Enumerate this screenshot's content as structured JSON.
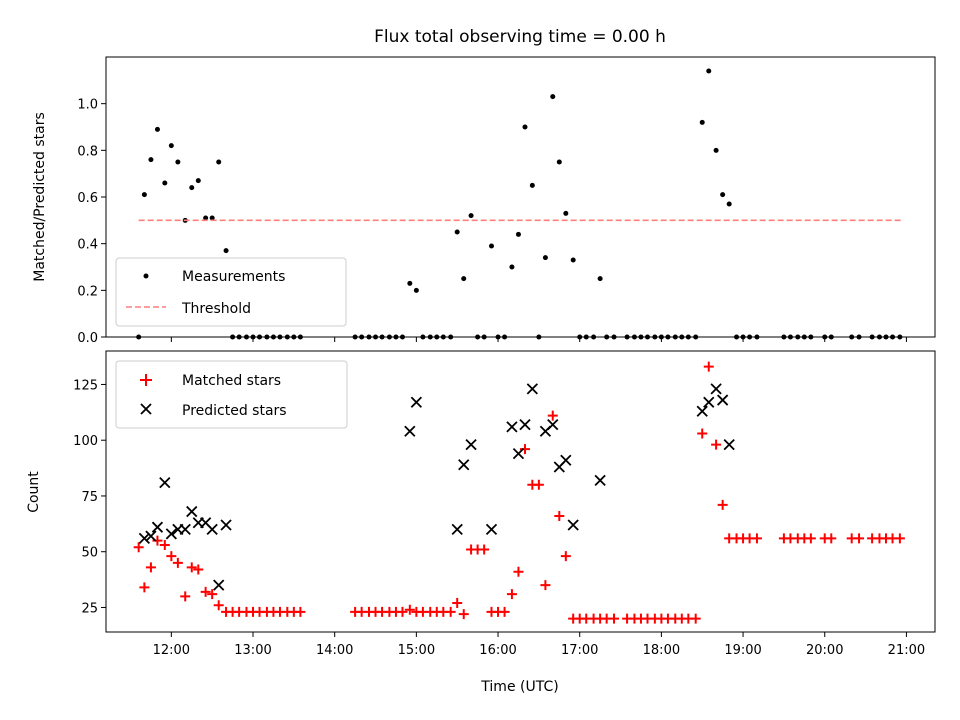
{
  "chart_data": {
    "title": "Flux total observing time = 0.00 h",
    "xlabel": "Time (UTC)",
    "xlim": [
      11.2,
      21.35
    ],
    "xticks": [
      {
        "v": 12,
        "label": "12:00"
      },
      {
        "v": 13,
        "label": "13:00"
      },
      {
        "v": 14,
        "label": "14:00"
      },
      {
        "v": 15,
        "label": "15:00"
      },
      {
        "v": 16,
        "label": "16:00"
      },
      {
        "v": 17,
        "label": "17:00"
      },
      {
        "v": 18,
        "label": "18:00"
      },
      {
        "v": 19,
        "label": "19:00"
      },
      {
        "v": 20,
        "label": "20:00"
      },
      {
        "v": 21,
        "label": "21:00"
      }
    ],
    "top": {
      "type": "scatter",
      "ylabel": "Matched/Predicted stars",
      "ylim": [
        0,
        1.2
      ],
      "yticks": [
        "0.0",
        "0.2",
        "0.4",
        "0.6",
        "0.8",
        "1.0"
      ],
      "legend": [
        "Measurements",
        "Threshold"
      ],
      "threshold": {
        "value": 0.5,
        "x": [
          11.6,
          20.95
        ],
        "color": "#ff7f7f"
      },
      "measurements": {
        "color": "#000000",
        "points": [
          [
            11.6,
            0.0
          ],
          [
            11.67,
            0.61
          ],
          [
            11.75,
            0.76
          ],
          [
            11.83,
            0.89
          ],
          [
            11.92,
            0.66
          ],
          [
            12.0,
            0.82
          ],
          [
            12.08,
            0.75
          ],
          [
            12.17,
            0.5
          ],
          [
            12.25,
            0.64
          ],
          [
            12.33,
            0.67
          ],
          [
            12.42,
            0.51
          ],
          [
            12.5,
            0.51
          ],
          [
            12.58,
            0.75
          ],
          [
            12.67,
            0.37
          ],
          [
            12.75,
            0.0
          ],
          [
            12.83,
            0.0
          ],
          [
            12.92,
            0.0
          ],
          [
            13.0,
            0.0
          ],
          [
            13.08,
            0.0
          ],
          [
            13.17,
            0.0
          ],
          [
            13.25,
            0.0
          ],
          [
            13.33,
            0.0
          ],
          [
            13.42,
            0.0
          ],
          [
            13.5,
            0.0
          ],
          [
            13.58,
            0.0
          ],
          [
            14.25,
            0.0
          ],
          [
            14.33,
            0.0
          ],
          [
            14.42,
            0.0
          ],
          [
            14.5,
            0.0
          ],
          [
            14.58,
            0.0
          ],
          [
            14.67,
            0.0
          ],
          [
            14.75,
            0.0
          ],
          [
            14.83,
            0.0
          ],
          [
            14.92,
            0.23
          ],
          [
            15.0,
            0.2
          ],
          [
            15.08,
            0.0
          ],
          [
            15.17,
            0.0
          ],
          [
            15.25,
            0.0
          ],
          [
            15.33,
            0.0
          ],
          [
            15.42,
            0.0
          ],
          [
            15.5,
            0.45
          ],
          [
            15.58,
            0.25
          ],
          [
            15.67,
            0.52
          ],
          [
            15.75,
            0.0
          ],
          [
            15.83,
            0.0
          ],
          [
            15.92,
            0.39
          ],
          [
            16.0,
            0.0
          ],
          [
            16.08,
            0.0
          ],
          [
            16.17,
            0.3
          ],
          [
            16.25,
            0.44
          ],
          [
            16.33,
            0.9
          ],
          [
            16.42,
            0.65
          ],
          [
            16.5,
            0.0
          ],
          [
            16.58,
            0.34
          ],
          [
            16.67,
            1.03
          ],
          [
            16.75,
            0.75
          ],
          [
            16.83,
            0.53
          ],
          [
            16.92,
            0.33
          ],
          [
            17.0,
            0.0
          ],
          [
            17.08,
            0.0
          ],
          [
            17.17,
            0.0
          ],
          [
            17.25,
            0.25
          ],
          [
            17.33,
            0.0
          ],
          [
            17.42,
            0.0
          ],
          [
            17.58,
            0.0
          ],
          [
            17.67,
            0.0
          ],
          [
            17.75,
            0.0
          ],
          [
            17.83,
            0.0
          ],
          [
            17.92,
            0.0
          ],
          [
            18.0,
            0.0
          ],
          [
            18.08,
            0.0
          ],
          [
            18.17,
            0.0
          ],
          [
            18.25,
            0.0
          ],
          [
            18.33,
            0.0
          ],
          [
            18.42,
            0.0
          ],
          [
            18.5,
            0.92
          ],
          [
            18.58,
            1.14
          ],
          [
            18.67,
            0.8
          ],
          [
            18.75,
            0.61
          ],
          [
            18.83,
            0.57
          ],
          [
            18.92,
            0.0
          ],
          [
            19.0,
            0.0
          ],
          [
            19.08,
            0.0
          ],
          [
            19.17,
            0.0
          ],
          [
            19.5,
            0.0
          ],
          [
            19.58,
            0.0
          ],
          [
            19.67,
            0.0
          ],
          [
            19.75,
            0.0
          ],
          [
            19.83,
            0.0
          ],
          [
            20.0,
            0.0
          ],
          [
            20.08,
            0.0
          ],
          [
            20.33,
            0.0
          ],
          [
            20.42,
            0.0
          ],
          [
            20.58,
            0.0
          ],
          [
            20.67,
            0.0
          ],
          [
            20.75,
            0.0
          ],
          [
            20.83,
            0.0
          ],
          [
            20.92,
            0.0
          ]
        ]
      }
    },
    "bottom": {
      "type": "scatter",
      "ylabel": "Count",
      "ylim": [
        14,
        140
      ],
      "yticks": [
        25,
        50,
        75,
        100,
        125
      ],
      "legend": [
        "Matched stars",
        "Predicted stars"
      ],
      "matched": {
        "color": "#ff0000",
        "points": [
          [
            11.6,
            52
          ],
          [
            11.67,
            34
          ],
          [
            11.75,
            43
          ],
          [
            11.83,
            55
          ],
          [
            11.92,
            53
          ],
          [
            12.0,
            48
          ],
          [
            12.08,
            45
          ],
          [
            12.17,
            30
          ],
          [
            12.25,
            43
          ],
          [
            12.33,
            42
          ],
          [
            12.42,
            32
          ],
          [
            12.5,
            31
          ],
          [
            12.58,
            26
          ],
          [
            12.67,
            23
          ],
          [
            12.75,
            23
          ],
          [
            12.83,
            23
          ],
          [
            12.92,
            23
          ],
          [
            13.0,
            23
          ],
          [
            13.08,
            23
          ],
          [
            13.17,
            23
          ],
          [
            13.25,
            23
          ],
          [
            13.33,
            23
          ],
          [
            13.42,
            23
          ],
          [
            13.5,
            23
          ],
          [
            13.58,
            23
          ],
          [
            14.25,
            23
          ],
          [
            14.33,
            23
          ],
          [
            14.42,
            23
          ],
          [
            14.5,
            23
          ],
          [
            14.58,
            23
          ],
          [
            14.67,
            23
          ],
          [
            14.75,
            23
          ],
          [
            14.83,
            23
          ],
          [
            14.92,
            24
          ],
          [
            15.0,
            23
          ],
          [
            15.08,
            23
          ],
          [
            15.17,
            23
          ],
          [
            15.25,
            23
          ],
          [
            15.33,
            23
          ],
          [
            15.42,
            23
          ],
          [
            15.5,
            27
          ],
          [
            15.58,
            22
          ],
          [
            15.67,
            51
          ],
          [
            15.75,
            51
          ],
          [
            15.83,
            51
          ],
          [
            15.92,
            23
          ],
          [
            16.0,
            23
          ],
          [
            16.08,
            23
          ],
          [
            16.17,
            31
          ],
          [
            16.25,
            41
          ],
          [
            16.33,
            96
          ],
          [
            16.42,
            80
          ],
          [
            16.5,
            80
          ],
          [
            16.58,
            35
          ],
          [
            16.67,
            111
          ],
          [
            16.75,
            66
          ],
          [
            16.83,
            48
          ],
          [
            16.92,
            20
          ],
          [
            17.0,
            20
          ],
          [
            17.08,
            20
          ],
          [
            17.17,
            20
          ],
          [
            17.25,
            20
          ],
          [
            17.33,
            20
          ],
          [
            17.42,
            20
          ],
          [
            17.58,
            20
          ],
          [
            17.67,
            20
          ],
          [
            17.75,
            20
          ],
          [
            17.83,
            20
          ],
          [
            17.92,
            20
          ],
          [
            18.0,
            20
          ],
          [
            18.08,
            20
          ],
          [
            18.17,
            20
          ],
          [
            18.25,
            20
          ],
          [
            18.33,
            20
          ],
          [
            18.42,
            20
          ],
          [
            18.5,
            103
          ],
          [
            18.58,
            133
          ],
          [
            18.67,
            98
          ],
          [
            18.75,
            71
          ],
          [
            18.83,
            56
          ],
          [
            18.92,
            56
          ],
          [
            19.0,
            56
          ],
          [
            19.08,
            56
          ],
          [
            19.17,
            56
          ],
          [
            19.5,
            56
          ],
          [
            19.58,
            56
          ],
          [
            19.67,
            56
          ],
          [
            19.75,
            56
          ],
          [
            19.83,
            56
          ],
          [
            20.0,
            56
          ],
          [
            20.08,
            56
          ],
          [
            20.33,
            56
          ],
          [
            20.42,
            56
          ],
          [
            20.58,
            56
          ],
          [
            20.67,
            56
          ],
          [
            20.75,
            56
          ],
          [
            20.83,
            56
          ],
          [
            20.92,
            56
          ]
        ]
      },
      "predicted": {
        "color": "#000000",
        "points": [
          [
            11.67,
            56
          ],
          [
            11.75,
            57
          ],
          [
            11.83,
            61
          ],
          [
            11.92,
            81
          ],
          [
            12.0,
            58
          ],
          [
            12.08,
            60
          ],
          [
            12.17,
            60
          ],
          [
            12.25,
            68
          ],
          [
            12.33,
            63
          ],
          [
            12.42,
            63
          ],
          [
            12.5,
            60
          ],
          [
            12.58,
            35
          ],
          [
            12.67,
            62
          ],
          [
            14.92,
            104
          ],
          [
            15.0,
            117
          ],
          [
            15.5,
            60
          ],
          [
            15.58,
            89
          ],
          [
            15.67,
            98
          ],
          [
            15.92,
            60
          ],
          [
            16.17,
            106
          ],
          [
            16.25,
            94
          ],
          [
            16.33,
            107
          ],
          [
            16.42,
            123
          ],
          [
            16.58,
            104
          ],
          [
            16.67,
            107
          ],
          [
            16.75,
            88
          ],
          [
            16.83,
            91
          ],
          [
            16.92,
            62
          ],
          [
            17.25,
            82
          ],
          [
            18.5,
            113
          ],
          [
            18.58,
            117
          ],
          [
            18.67,
            123
          ],
          [
            18.75,
            118
          ],
          [
            18.83,
            98
          ]
        ]
      }
    }
  }
}
